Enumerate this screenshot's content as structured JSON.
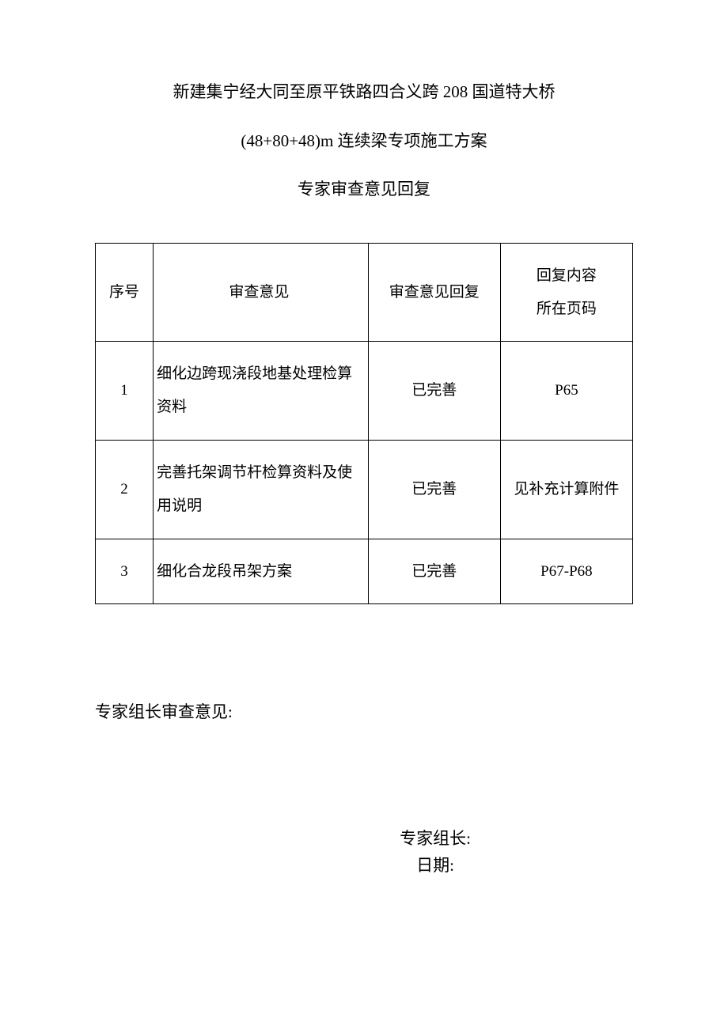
{
  "document": {
    "title": "新建集宁经大同至原平铁路四合义跨 208 国道特大桥",
    "subtitle": "(48+80+48)m 连续梁专项施工方案",
    "section": "专家审查意见回复"
  },
  "table": {
    "headers": {
      "seq": "序号",
      "opinion": "审查意见",
      "reply": "审查意见回复",
      "page": "回复内容\n所在页码",
      "page_line1": "回复内容",
      "page_line2": "所在页码"
    },
    "rows": [
      {
        "seq": "1",
        "opinion": "细化边跨现浇段地基处理检算资料",
        "reply": "已完善",
        "page": "P65"
      },
      {
        "seq": "2",
        "opinion": "完善托架调节杆检算资料及使用说明",
        "reply": "已完善",
        "page": "见补充计算附件"
      },
      {
        "seq": "3",
        "opinion": "细化合龙段吊架方案",
        "reply": "已完善",
        "page": "P67-P68"
      }
    ]
  },
  "footer": {
    "leader_opinion_label": "专家组长审查意见:",
    "leader_label": "专家组长:",
    "date_label": "日期:"
  },
  "styling": {
    "background_color": "#ffffff",
    "text_color": "#000000",
    "border_color": "#000000",
    "title_fontsize": 21,
    "table_fontsize": 19,
    "font_family": "SimSun"
  }
}
